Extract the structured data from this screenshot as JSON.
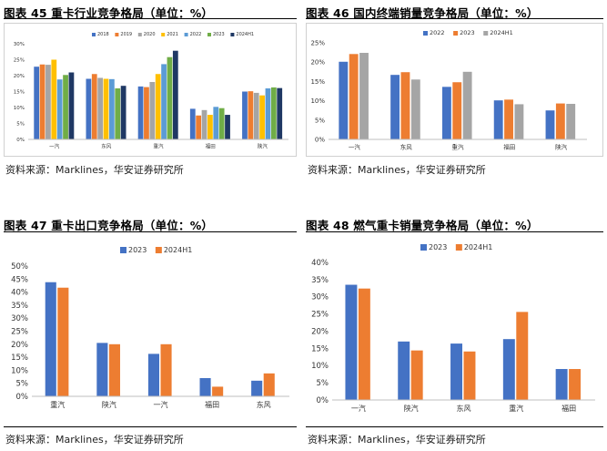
{
  "panels": [
    {
      "id": "p45",
      "title": "图表 45 重卡行业竞争格局（单位：%）",
      "source": "资料来源：Marklines，华安证券研究所",
      "framed": true
    },
    {
      "id": "p46",
      "title": "图表 46 国内终端销量竞争格局（单位：%）",
      "source": "资料来源：Marklines，华安证券研究所",
      "framed": true
    },
    {
      "id": "p47",
      "title": "图表 47 重卡出口竞争格局（单位：%）",
      "source": "资料来源：Marklines，华安证券研究所",
      "framed": false
    },
    {
      "id": "p48",
      "title": "图表 48 燃气重卡销量竞争格局（单位：%）",
      "source": "资料来源：Marklines，华安证券研究所",
      "framed": false
    }
  ],
  "chart_data": [
    {
      "type": "bar",
      "title": "图表 45 重卡行业竞争格局（单位：%）",
      "categories": [
        "一汽",
        "东风",
        "重汽",
        "福田",
        "陕汽"
      ],
      "ylim": [
        0,
        30
      ],
      "yticks": [
        "0%",
        "5%",
        "10%",
        "15%",
        "20%",
        "25%",
        "30%"
      ],
      "grid": false,
      "legend": "top",
      "series": [
        {
          "name": "2018",
          "color": "#4472c4",
          "values": [
            22.8,
            19.0,
            16.6,
            9.6,
            15.0
          ]
        },
        {
          "name": "2019",
          "color": "#ed7d31",
          "values": [
            23.5,
            20.5,
            16.4,
            7.5,
            15.1
          ]
        },
        {
          "name": "2020",
          "color": "#a5a5a5",
          "values": [
            23.4,
            19.3,
            18.0,
            9.2,
            14.6
          ]
        },
        {
          "name": "2021",
          "color": "#ffc000",
          "values": [
            25.0,
            19.0,
            20.5,
            7.7,
            13.8
          ]
        },
        {
          "name": "2022",
          "color": "#5b9bd5",
          "values": [
            18.8,
            18.9,
            23.6,
            10.2,
            16.0
          ]
        },
        {
          "name": "2023",
          "color": "#70ad47",
          "values": [
            20.2,
            16.0,
            25.8,
            9.8,
            16.3
          ]
        },
        {
          "name": "2024H1",
          "color": "#1f3864",
          "values": [
            21.0,
            16.8,
            27.8,
            7.7,
            16.1
          ]
        }
      ]
    },
    {
      "type": "bar",
      "title": "图表 46 国内终端销量竞争格局（单位：%）",
      "categories": [
        "一汽",
        "东风",
        "重汽",
        "福田",
        "陕汽"
      ],
      "ylim": [
        0,
        25
      ],
      "yticks": [
        "0%",
        "5%",
        "10%",
        "15%",
        "20%",
        "25%"
      ],
      "grid": false,
      "legend": "top",
      "series": [
        {
          "name": "2022",
          "color": "#4472c4",
          "values": [
            20.1,
            16.7,
            13.6,
            10.1,
            7.5
          ]
        },
        {
          "name": "2023",
          "color": "#ed7d31",
          "values": [
            22.1,
            17.4,
            14.8,
            10.3,
            9.3
          ]
        },
        {
          "name": "2024H1",
          "color": "#a5a5a5",
          "values": [
            22.4,
            15.5,
            17.5,
            9.1,
            9.2
          ]
        }
      ]
    },
    {
      "type": "bar",
      "title": "图表 47 重卡出口竞争格局（单位：%）",
      "categories": [
        "重汽",
        "陕汽",
        "一汽",
        "福田",
        "东风"
      ],
      "ylim": [
        0,
        50
      ],
      "yticks": [
        "0%",
        "5%",
        "10%",
        "15%",
        "20%",
        "25%",
        "30%",
        "35%",
        "40%",
        "45%",
        "50%"
      ],
      "grid": false,
      "legend": "top-left",
      "series": [
        {
          "name": "2023",
          "color": "#4472c4",
          "values": [
            43.8,
            20.5,
            16.3,
            7.0,
            6.0
          ]
        },
        {
          "name": "2024H1",
          "color": "#ed7d31",
          "values": [
            41.7,
            20.0,
            20.0,
            3.7,
            8.8
          ]
        }
      ]
    },
    {
      "type": "bar",
      "title": "图表 48 燃气重卡销量竞争格局（单位：%）",
      "categories": [
        "一汽",
        "陕汽",
        "东风",
        "重汽",
        "福田"
      ],
      "ylim": [
        0,
        40
      ],
      "yticks": [
        "0%",
        "5%",
        "10%",
        "15%",
        "20%",
        "25%",
        "30%",
        "35%",
        "40%"
      ],
      "grid": false,
      "legend": "top-left",
      "series": [
        {
          "name": "2023",
          "color": "#4472c4",
          "values": [
            33.5,
            17.0,
            16.4,
            17.7,
            9.0
          ]
        },
        {
          "name": "2024H1",
          "color": "#ed7d31",
          "values": [
            32.4,
            14.4,
            14.1,
            25.6,
            9.0
          ]
        }
      ]
    }
  ]
}
